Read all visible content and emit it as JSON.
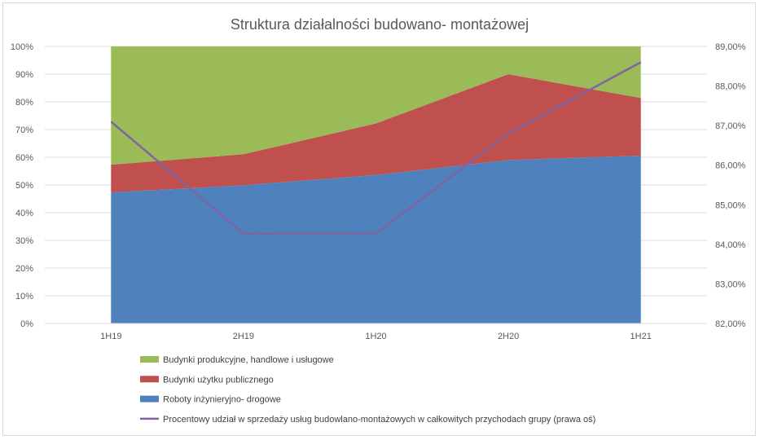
{
  "chart_data": {
    "type": "area",
    "title": "Struktura działalności budowano- montażowej",
    "categories": [
      "1H19",
      "2H19",
      "1H20",
      "2H20",
      "1H21"
    ],
    "ylim": [
      0,
      100
    ],
    "yticks": [
      "0%",
      "10%",
      "20%",
      "30%",
      "40%",
      "50%",
      "60%",
      "70%",
      "80%",
      "90%",
      "100%"
    ],
    "y2lim": [
      82,
      89
    ],
    "y2ticks": [
      "82,00%",
      "83,00%",
      "84,00%",
      "85,00%",
      "86,00%",
      "87,00%",
      "88,00%",
      "89,00%"
    ],
    "stacked": true,
    "grid": true,
    "legend_position": "bottom",
    "series": [
      {
        "name": "Roboty inżynieryjno- drogowe",
        "values": [
          47.3,
          49.9,
          53.6,
          59.0,
          60.6
        ],
        "color": "#4f81bd",
        "axis": "left"
      },
      {
        "name": "Budynki użytku publicznego",
        "values": [
          10.0,
          11.2,
          18.6,
          31.0,
          20.8
        ],
        "color": "#c0504d",
        "axis": "left"
      },
      {
        "name": "Budynki produkcyjne, handlowe i usługowe",
        "values": [
          42.7,
          38.9,
          27.8,
          10.0,
          18.6
        ],
        "color": "#9bbb59",
        "axis": "left"
      }
    ],
    "line_series": {
      "name": "Procentowy udział w sprzedaży usług budowlano-montażowych w całkowitych przychodach grupy (prawa oś)",
      "values": [
        87.1,
        84.27,
        84.28,
        86.8,
        88.6
      ],
      "color": "#8064a2",
      "axis": "right"
    },
    "legend_order": [
      "Budynki produkcyjne, handlowe i usługowe",
      "Budynki użytku publicznego",
      "Roboty inżynieryjno- drogowe",
      "Procentowy udział w sprzedaży usług budowlano-montażowych w całkowitych przychodach grupy (prawa oś)"
    ]
  }
}
